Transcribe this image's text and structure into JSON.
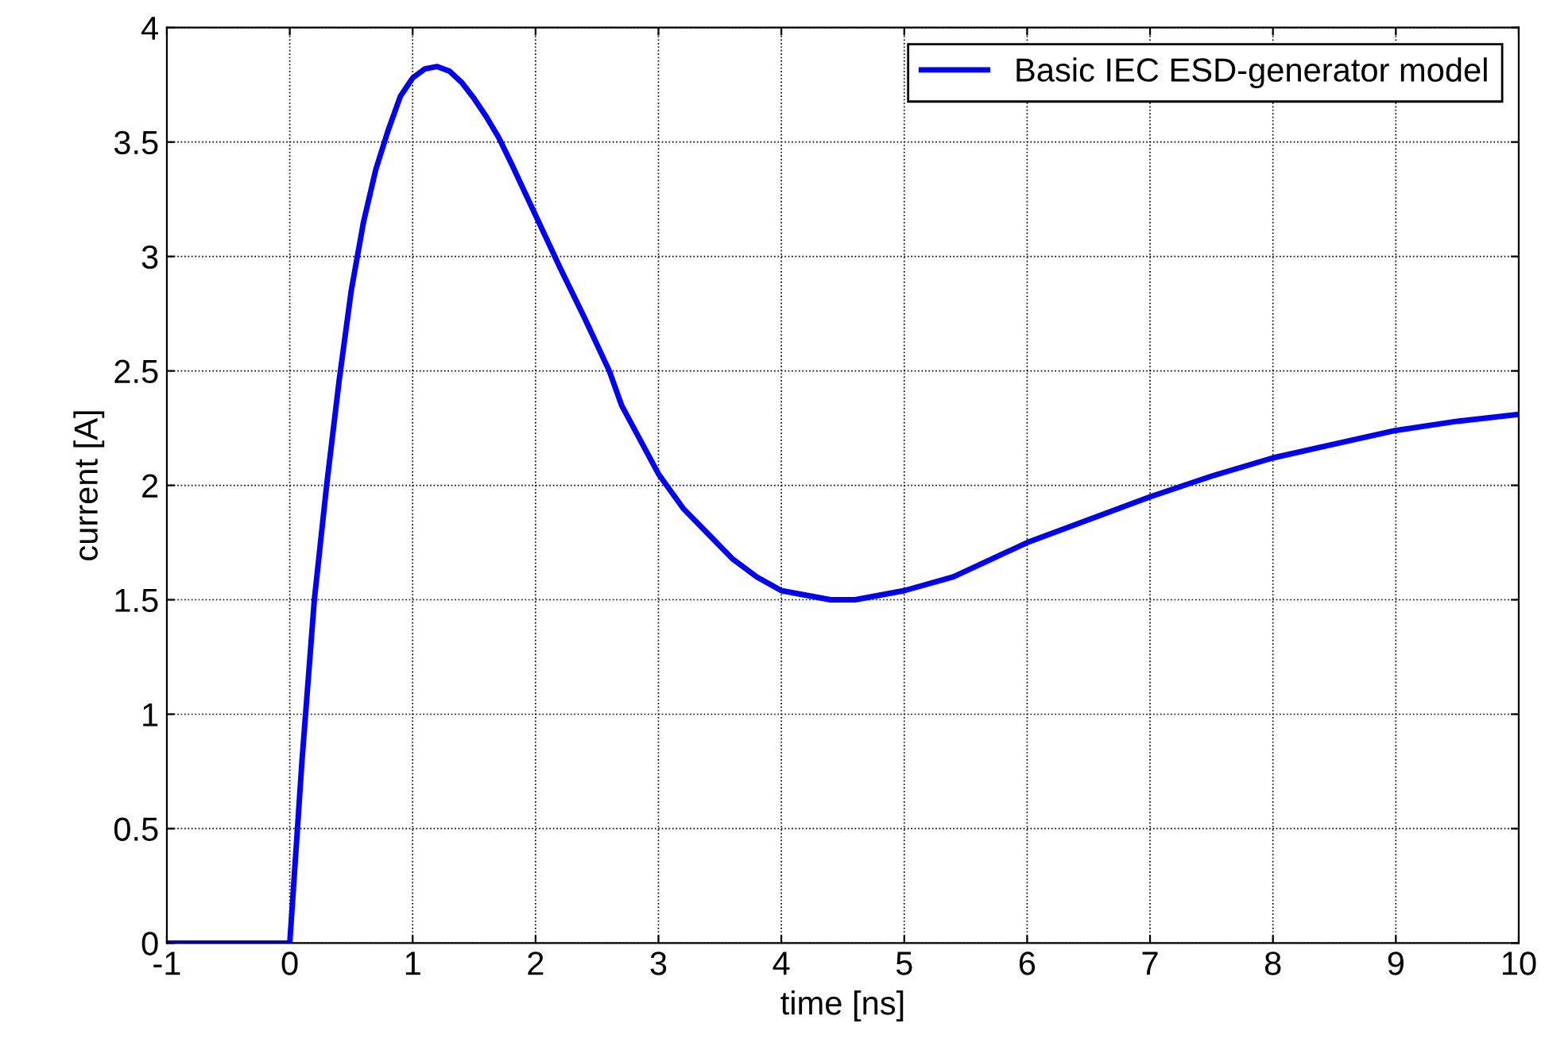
{
  "chart_data": {
    "type": "line",
    "xlabel": "time [ns]",
    "ylabel": "current [A]",
    "x": [
      -1,
      -0.5,
      0,
      0.1,
      0.2,
      0.3,
      0.4,
      0.5,
      0.6,
      0.7,
      0.8,
      0.9,
      1.0,
      1.1,
      1.2,
      1.3,
      1.4,
      1.5,
      1.6,
      1.7,
      1.8,
      2.0,
      2.2,
      2.4,
      2.6,
      2.7,
      3.0,
      3.2,
      3.4,
      3.6,
      3.8,
      4.0,
      4.2,
      4.4,
      4.6,
      4.8,
      5.0,
      5.4,
      5.8,
      6.0,
      6.5,
      7.0,
      7.5,
      8.0,
      8.5,
      9.0,
      9.5,
      10
    ],
    "series": [
      {
        "name": "Basic IEC ESD-generator model",
        "color": "#0000ff",
        "values": [
          0,
          0,
          0,
          0.8,
          1.5,
          2.0,
          2.45,
          2.85,
          3.15,
          3.38,
          3.55,
          3.7,
          3.78,
          3.82,
          3.83,
          3.81,
          3.76,
          3.69,
          3.61,
          3.52,
          3.41,
          3.18,
          2.95,
          2.73,
          2.5,
          2.35,
          2.05,
          1.9,
          1.79,
          1.68,
          1.6,
          1.54,
          1.52,
          1.5,
          1.5,
          1.52,
          1.54,
          1.6,
          1.7,
          1.75,
          1.85,
          1.95,
          2.04,
          2.12,
          2.18,
          2.24,
          2.28,
          2.31
        ]
      }
    ],
    "xlim": [
      -1,
      10
    ],
    "xticks": [
      -1,
      0,
      1,
      2,
      3,
      4,
      5,
      6,
      7,
      8,
      9,
      10
    ],
    "ylim": [
      0,
      4
    ],
    "yticks": [
      0,
      0.5,
      1,
      1.5,
      2,
      2.5,
      3,
      3.5,
      4
    ],
    "grid": true,
    "legend": "top right",
    "marker": "none",
    "line_style": "solid"
  }
}
